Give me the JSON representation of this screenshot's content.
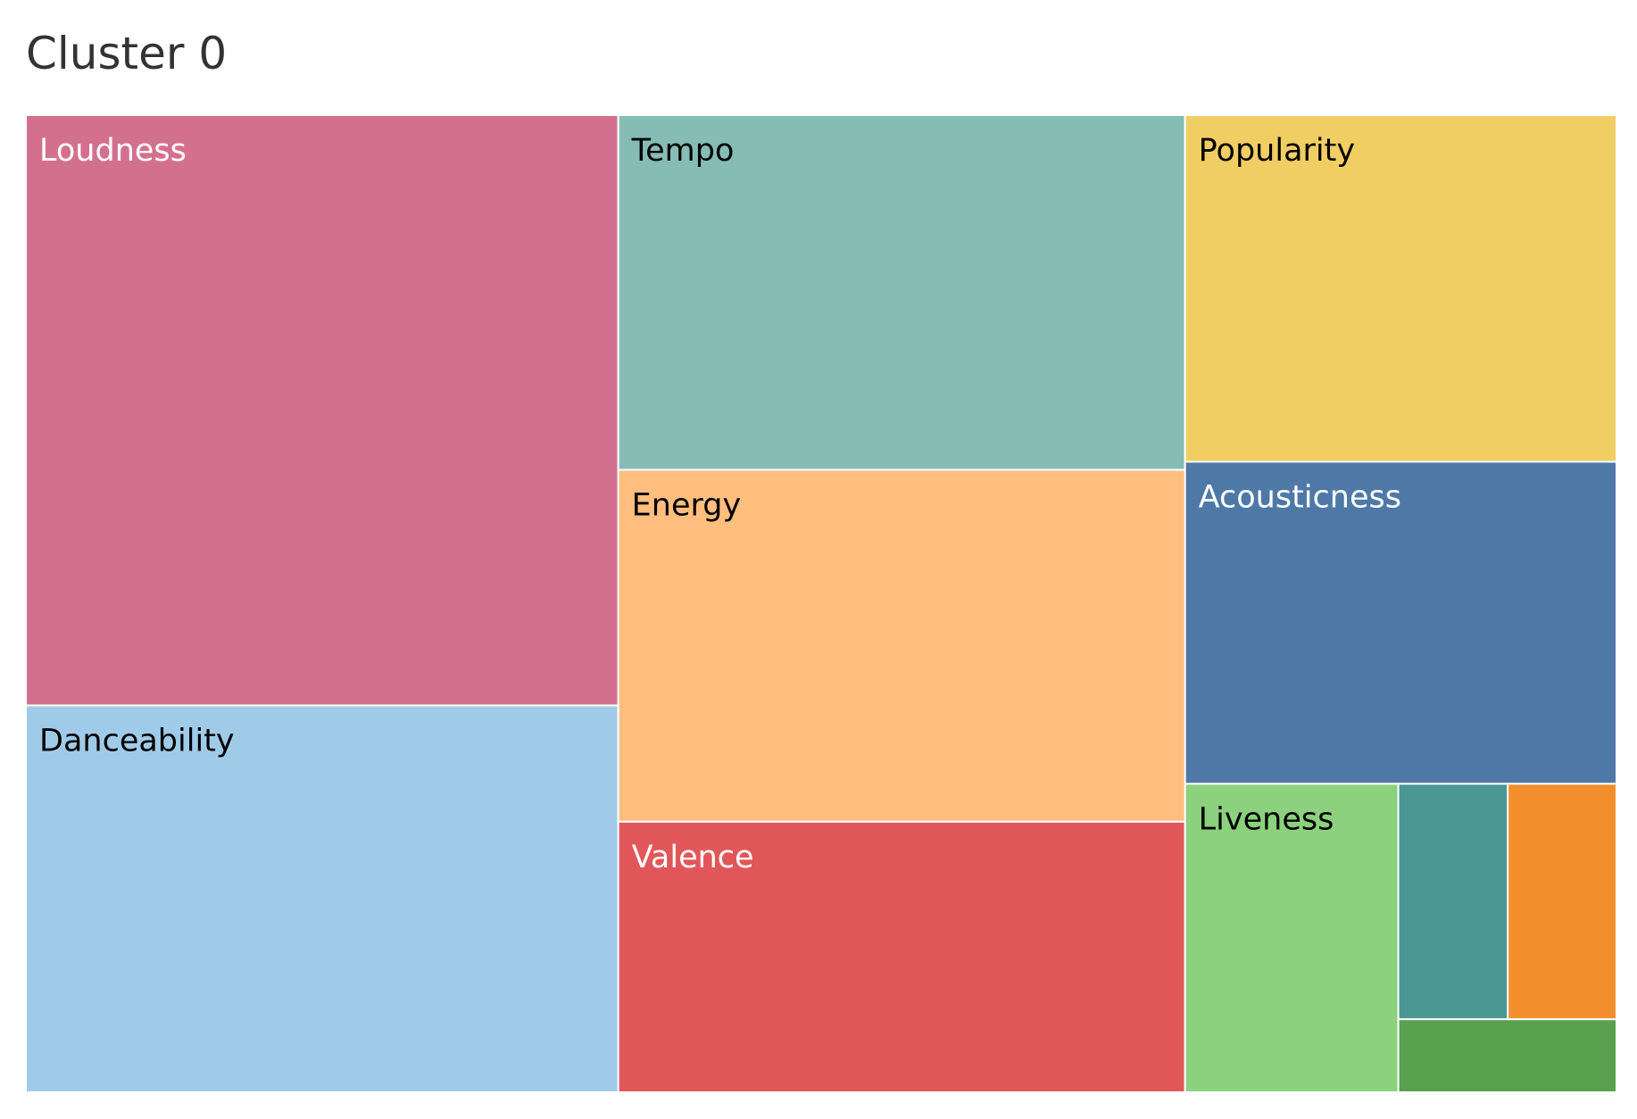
{
  "chart_data": {
    "type": "treemap",
    "title": "Cluster 0",
    "nodes": [
      {
        "label": "Loudness",
        "value": 18.45,
        "color": "#d4708f",
        "label_color": "#ffffff"
      },
      {
        "label": "Danceability",
        "value": 12.09,
        "color": "#a0cbe8",
        "label_color": "#000000"
      },
      {
        "label": "Tempo",
        "value": 10.61,
        "color": "#86bcb6",
        "label_color": "#000000"
      },
      {
        "label": "Energy",
        "value": 10.52,
        "color": "#ffbe7d",
        "label_color": "#000000"
      },
      {
        "label": "Valence",
        "value": 8.09,
        "color": "#e15759",
        "label_color": "#ffffff"
      },
      {
        "label": "Popularity",
        "value": 7.89,
        "color": "#f1ce63",
        "label_color": "#000000"
      },
      {
        "label": "Acousticness",
        "value": 7.33,
        "color": "#4e79a7",
        "label_color": "#ffffff"
      },
      {
        "label": "Liveness",
        "value": 3.47,
        "color": "#8cd17d",
        "label_color": "#000000"
      },
      {
        "label": "",
        "value": 1.36,
        "color": "#499894",
        "label_color": "#000000"
      },
      {
        "label": "",
        "value": 1.35,
        "color": "#f28e2b",
        "label_color": "#000000"
      },
      {
        "label": "",
        "value": 0.84,
        "color": "#59a14f",
        "label_color": "#000000"
      }
    ]
  }
}
